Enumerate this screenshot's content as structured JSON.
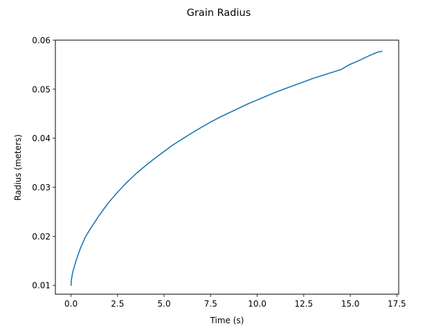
{
  "chart_data": {
    "type": "line",
    "title": "Grain Radius",
    "xlabel": "Time (s)",
    "ylabel": "Radius (meters)",
    "xlim": [
      -0.84,
      17.6
    ],
    "ylim": [
      0.0082,
      0.06
    ],
    "x_ticks": [
      0,
      2.5,
      5,
      7.5,
      10,
      12.5,
      15,
      17.5
    ],
    "x_tick_labels": [
      "0.0",
      "2.5",
      "5.0",
      "7.5",
      "10.0",
      "12.5",
      "15.0",
      "17.5"
    ],
    "y_ticks": [
      0.01,
      0.02,
      0.03,
      0.04,
      0.05,
      0.06
    ],
    "y_tick_labels": [
      "0.01",
      "0.02",
      "0.03",
      "0.04",
      "0.05",
      "0.06"
    ],
    "grid": false,
    "legend": "none",
    "series_color": "#1f77b4",
    "series": [
      {
        "x": [
          0,
          0.02,
          0.1,
          0.25,
          0.5,
          0.75,
          1,
          1.5,
          2,
          2.5,
          3,
          3.5,
          4,
          4.5,
          5,
          5.5,
          6,
          6.5,
          7,
          7.5,
          8,
          8.5,
          9,
          9.5,
          10,
          10.5,
          11,
          11.5,
          12,
          12.5,
          13,
          13.5,
          14,
          14.5,
          14.9,
          15.5,
          16,
          16.5,
          16.7
        ],
        "y": [
          0.01,
          0.0112,
          0.0128,
          0.0148,
          0.0175,
          0.0197,
          0.0213,
          0.0242,
          0.0268,
          0.029,
          0.031,
          0.0328,
          0.0344,
          0.0359,
          0.0373,
          0.0387,
          0.0399,
          0.0411,
          0.0422,
          0.0433,
          0.0443,
          0.0452,
          0.0461,
          0.047,
          0.0478,
          0.0486,
          0.0494,
          0.0501,
          0.0508,
          0.0515,
          0.0522,
          0.0528,
          0.0534,
          0.054,
          0.0549,
          0.0559,
          0.0568,
          0.0576,
          0.0577
        ]
      }
    ]
  }
}
